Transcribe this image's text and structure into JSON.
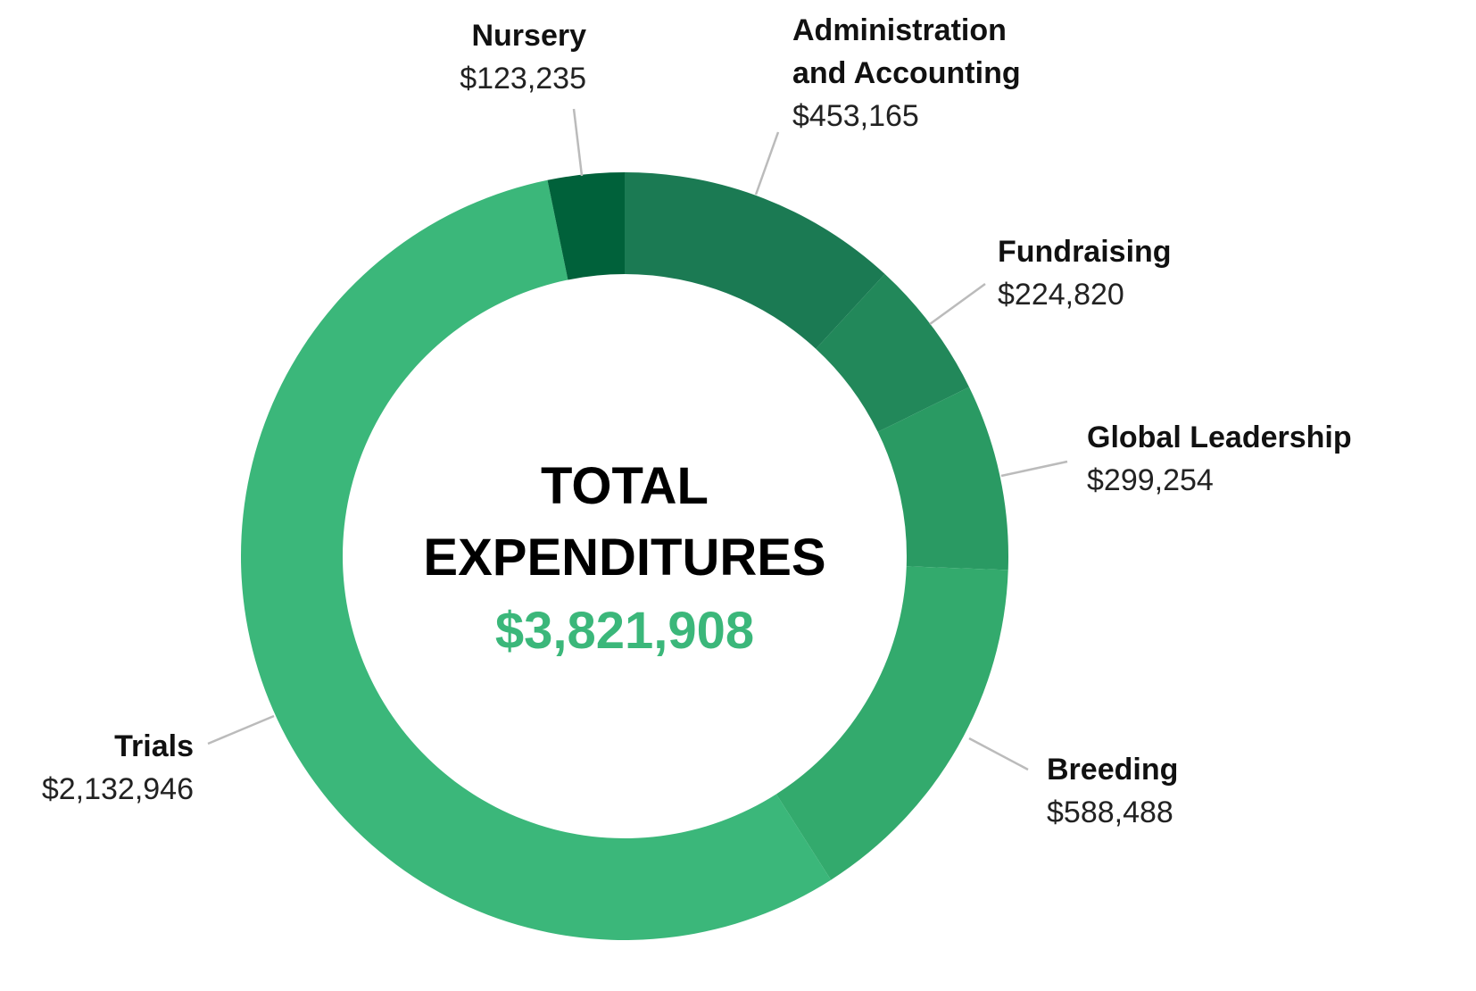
{
  "chart_data": {
    "type": "donut",
    "center_title": "TOTAL EXPENDITURES",
    "total": 3821908,
    "total_label": "$3,821,908",
    "categories": [
      "Administration and Accounting",
      "Fundraising",
      "Global Leadership",
      "Breeding",
      "Trials",
      "Nursery"
    ],
    "values": [
      453165,
      224820,
      299254,
      588488,
      2132946,
      123235
    ],
    "value_labels": [
      "$453,165",
      "$224,820",
      "$299,254",
      "$588,488",
      "$2,132,946",
      "$123,235"
    ],
    "colors": [
      "#1b7a53",
      "#22885a",
      "#2a9a63",
      "#33aa6d",
      "#3bb77a",
      "#00613a"
    ],
    "total_color": "#3bb77a"
  }
}
